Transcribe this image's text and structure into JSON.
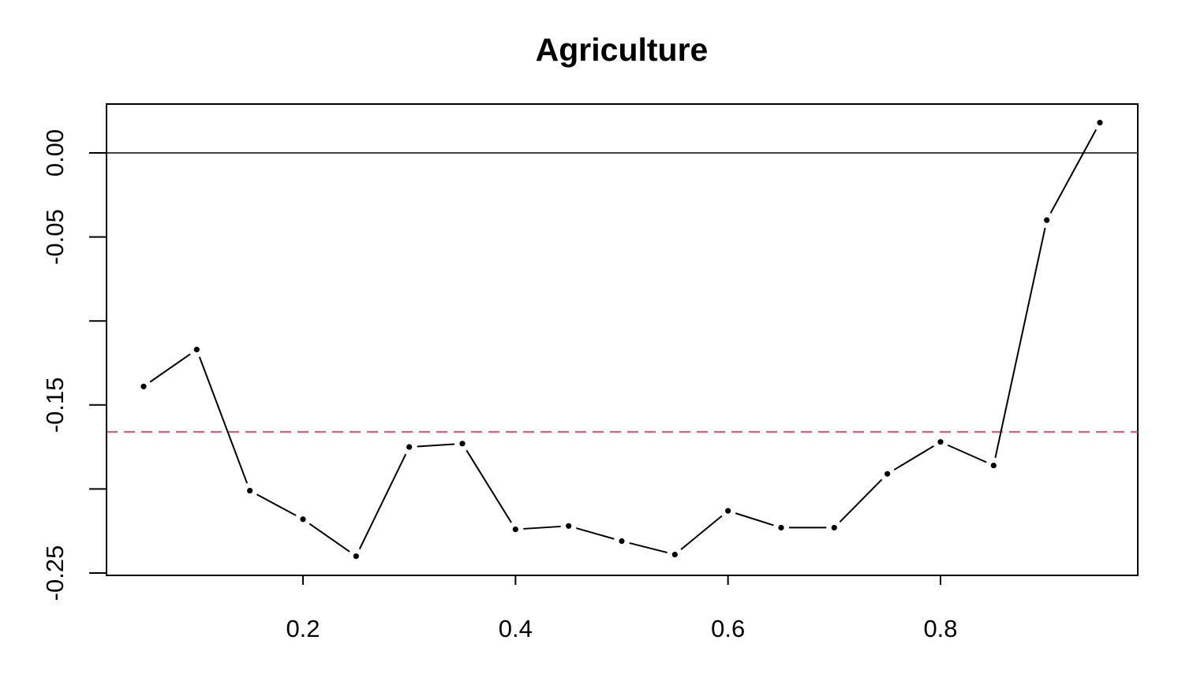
{
  "chart_data": {
    "type": "line",
    "title": "Agriculture",
    "xlabel": "",
    "ylabel": "",
    "xlim": [
      0.025,
      0.975
    ],
    "ylim": [
      -0.25,
      0.0
    ],
    "x_ticks": [
      0.2,
      0.4,
      0.6,
      0.8
    ],
    "x_tick_labels": [
      "0.2",
      "0.4",
      "0.6",
      "0.8"
    ],
    "y_ticks": [
      0.0,
      -0.05,
      -0.1,
      -0.15,
      -0.2,
      -0.25
    ],
    "y_tick_labels": [
      "0.00",
      "-0.05",
      "",
      "-0.15",
      "",
      "-0.25"
    ],
    "grid": false,
    "reference_lines": [
      {
        "orientation": "horizontal",
        "y": 0.0,
        "style": "solid",
        "color": "#444444"
      },
      {
        "orientation": "horizontal",
        "y": -0.166,
        "style": "dashed",
        "color": "#DF536B"
      }
    ],
    "series": [
      {
        "color": "#000000",
        "style": "points-and-lines",
        "x": [
          0.05,
          0.1,
          0.15,
          0.2,
          0.25,
          0.3,
          0.35,
          0.4,
          0.45,
          0.5,
          0.55,
          0.6,
          0.65,
          0.7,
          0.75,
          0.8,
          0.85,
          0.9,
          0.95
        ],
        "y": [
          -0.139,
          -0.117,
          -0.201,
          -0.218,
          -0.24,
          -0.175,
          -0.173,
          -0.224,
          -0.222,
          -0.231,
          -0.239,
          -0.213,
          -0.223,
          -0.223,
          -0.191,
          -0.172,
          -0.186,
          -0.04,
          0.018
        ]
      }
    ]
  }
}
